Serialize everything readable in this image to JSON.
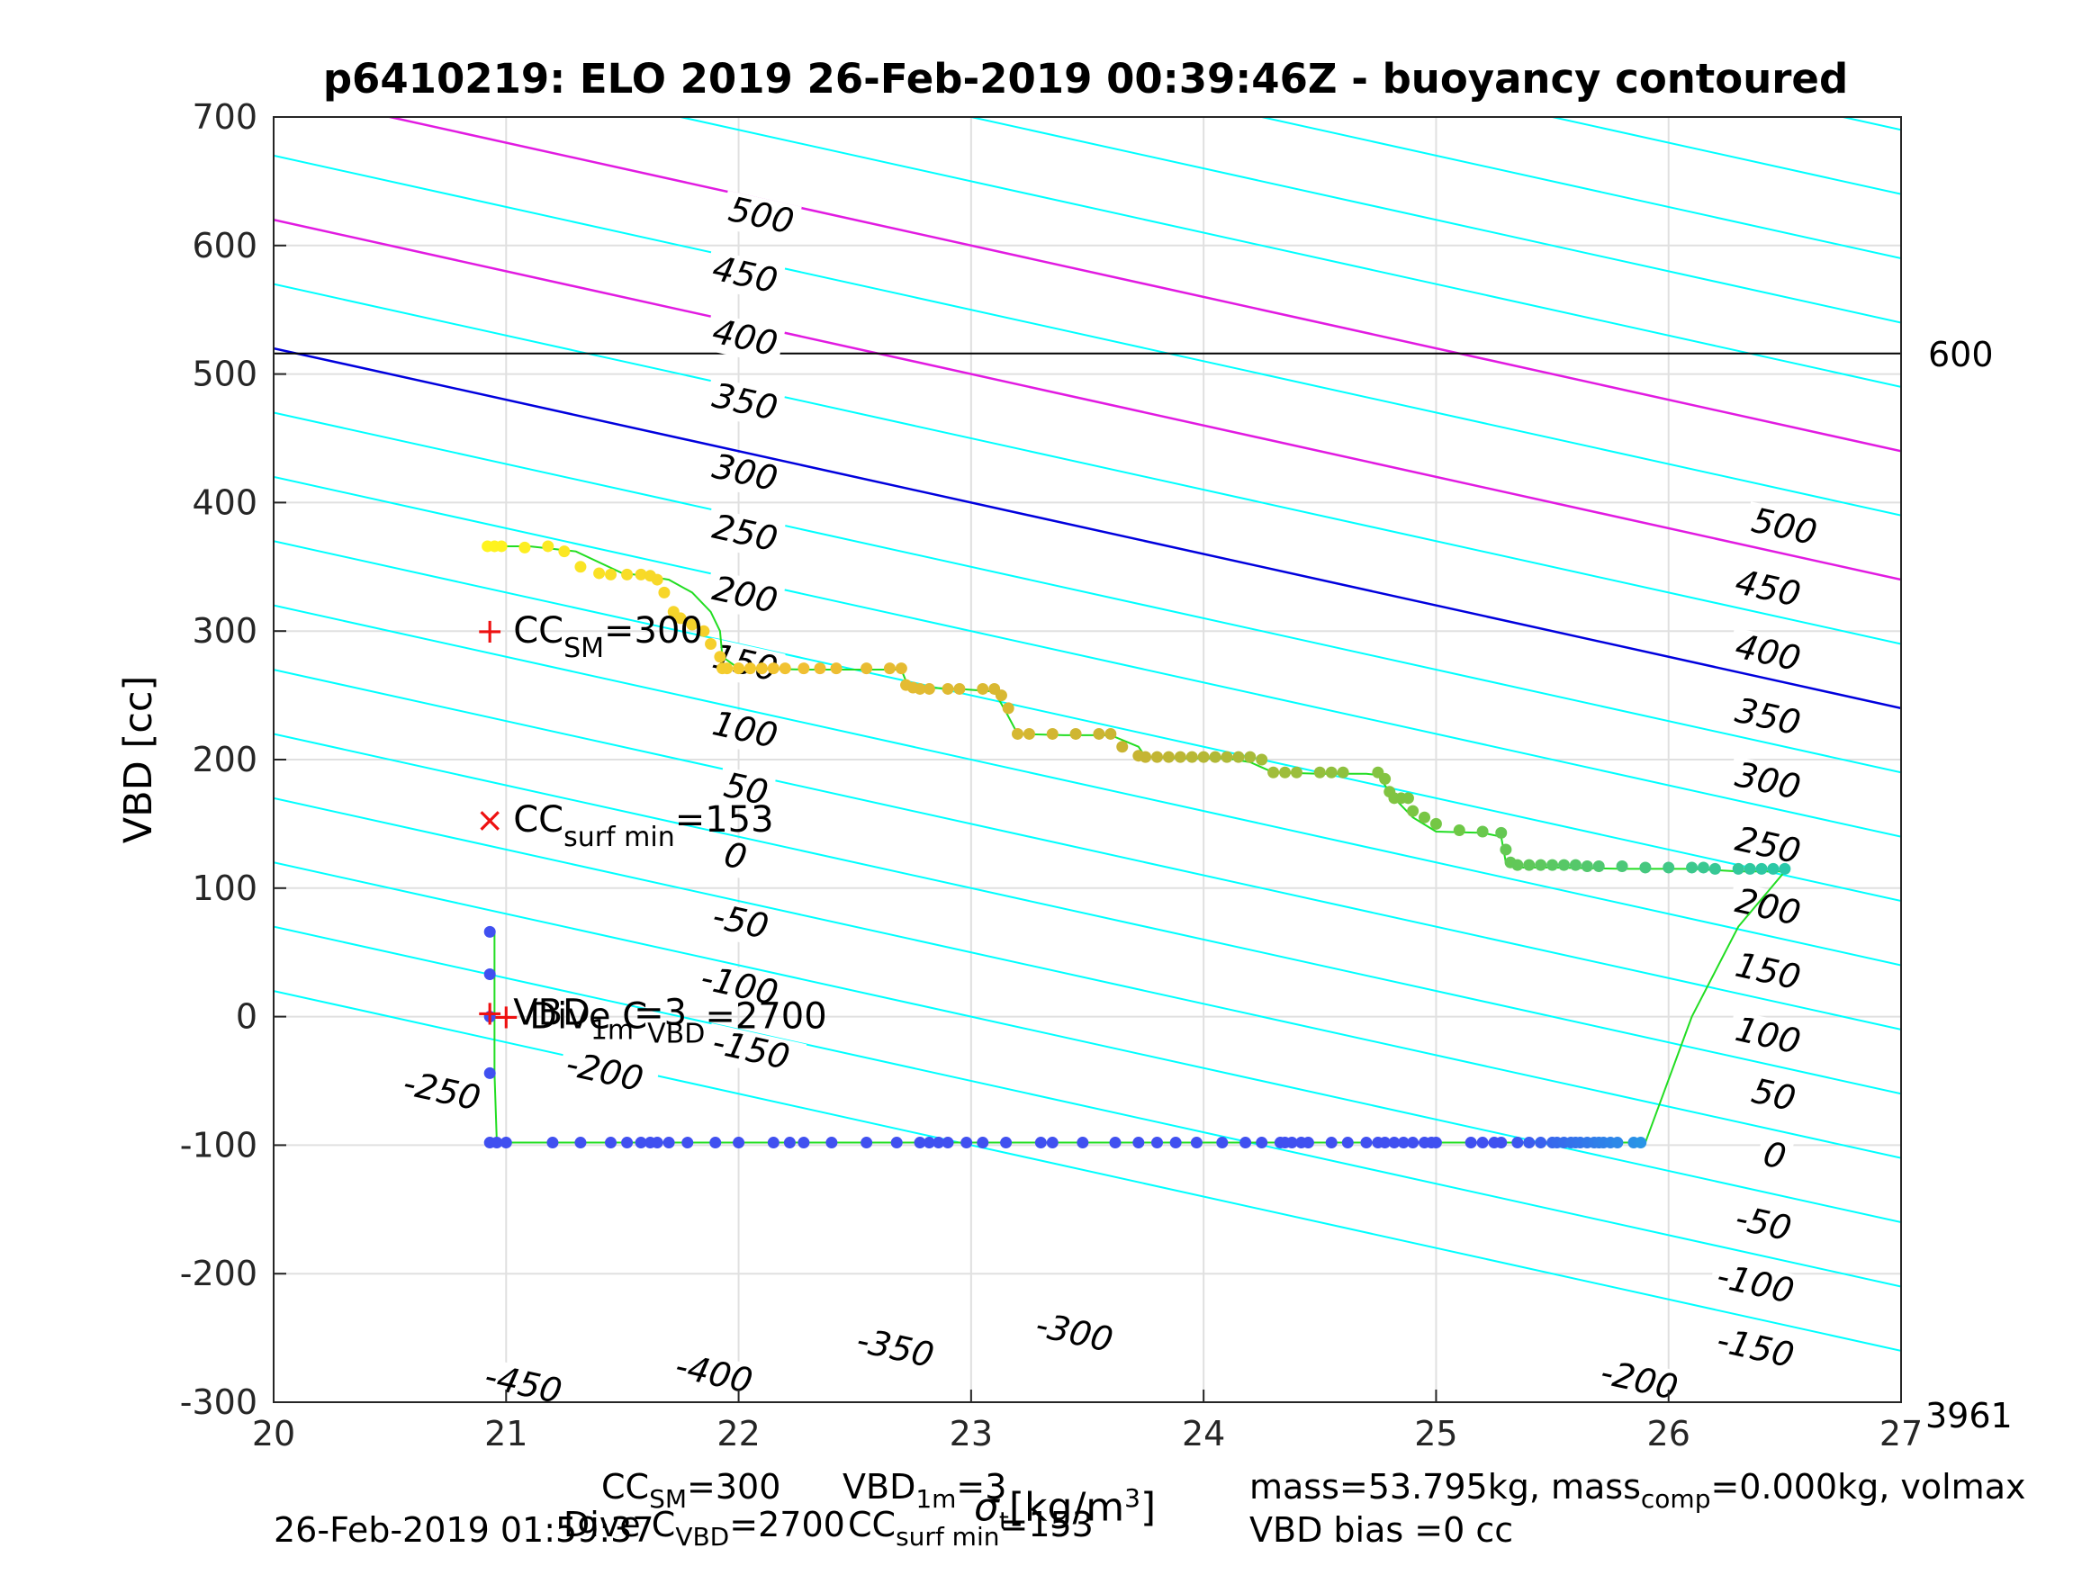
{
  "chart_data": {
    "type": "scatter",
    "title": "p6410219: ELO 2019 26-Feb-2019 00:39:46Z - buoyancy contoured",
    "xlabel": "",
    "ylabel": "VBD [cc]",
    "xlim": [
      20,
      27
    ],
    "ylim": [
      -300,
      700
    ],
    "xticks": [
      "20",
      "21",
      "22",
      "23",
      "24",
      "25",
      "26",
      "27"
    ],
    "yticks": [
      "-300",
      "-200",
      "-100",
      "0",
      "100",
      "200",
      "300",
      "400",
      "500",
      "600",
      "700"
    ],
    "grid": true,
    "reference_lines": [
      {
        "label": "600",
        "y": 516,
        "color": "#000000"
      },
      {
        "label": "3961",
        "y": -300,
        "color": "#000000"
      }
    ],
    "colors": {
      "contour": "#00ffff",
      "limit_contour": "#e11be1",
      "zero_contour": "#0000dd",
      "track": "#22dd22",
      "marker": "#ee1111",
      "descent_point": "#4050f0",
      "ascent_start": "#20c0b0",
      "ascent_end": "#f5f020"
    },
    "contours": {
      "slope": -40,
      "levels": [
        500,
        450,
        400,
        350,
        300,
        250,
        200,
        150,
        100,
        50,
        0,
        -50,
        -100,
        -150,
        -200,
        -250,
        -300,
        -350,
        -400,
        -450,
        -500
      ],
      "intercepts_at_x20": [
        1020,
        970,
        920,
        870,
        820,
        770,
        720,
        670,
        620,
        570,
        520,
        470,
        420,
        370,
        320,
        270,
        220,
        170,
        120,
        70,
        20
      ],
      "highlighted": [
        {
          "level": 200,
          "color": "#e11be1"
        },
        {
          "level": 100,
          "color": "#e11be1"
        },
        {
          "level": 0,
          "color": "#0000dd"
        }
      ],
      "labels": [
        {
          "text": "500",
          "x": 21.95,
          "y": 620
        },
        {
          "text": "450",
          "x": 21.88,
          "y": 574
        },
        {
          "text": "400",
          "x": 21.88,
          "y": 525
        },
        {
          "text": "350",
          "x": 21.88,
          "y": 475
        },
        {
          "text": "300",
          "x": 21.88,
          "y": 420
        },
        {
          "text": "250",
          "x": 21.88,
          "y": 373
        },
        {
          "text": "200",
          "x": 21.88,
          "y": 325
        },
        {
          "text": "150",
          "x": 21.88,
          "y": 272
        },
        {
          "text": "100",
          "x": 21.88,
          "y": 220
        },
        {
          "text": "50",
          "x": 21.93,
          "y": 172
        },
        {
          "text": "0",
          "x": 21.93,
          "y": 118
        },
        {
          "text": "-50",
          "x": 21.88,
          "y": 70
        },
        {
          "text": "-100",
          "x": 21.83,
          "y": 22
        },
        {
          "text": "-150",
          "x": 21.88,
          "y": -28
        },
        {
          "text": "-200",
          "x": 21.25,
          "y": -45
        },
        {
          "text": "-250",
          "x": 20.55,
          "y": -60
        },
        {
          "text": "-300",
          "x": 23.27,
          "y": -248
        },
        {
          "text": "-350",
          "x": 22.5,
          "y": -260
        },
        {
          "text": "-400",
          "x": 21.72,
          "y": -280
        },
        {
          "text": "-450",
          "x": 20.9,
          "y": -288
        },
        {
          "text": "500",
          "x": 26.35,
          "y": 378
        },
        {
          "text": "450",
          "x": 26.28,
          "y": 330
        },
        {
          "text": "400",
          "x": 26.28,
          "y": 280
        },
        {
          "text": "350",
          "x": 26.28,
          "y": 230
        },
        {
          "text": "300",
          "x": 26.28,
          "y": 180
        },
        {
          "text": "250",
          "x": 26.28,
          "y": 130
        },
        {
          "text": "200",
          "x": 26.28,
          "y": 82
        },
        {
          "text": "150",
          "x": 26.28,
          "y": 32
        },
        {
          "text": "100",
          "x": 26.28,
          "y": -18
        },
        {
          "text": "50",
          "x": 26.35,
          "y": -66
        },
        {
          "text": "0",
          "x": 26.4,
          "y": -115
        },
        {
          "text": "-50",
          "x": 26.28,
          "y": -165
        },
        {
          "text": "-100",
          "x": 26.2,
          "y": -210
        },
        {
          "text": "-150",
          "x": 26.2,
          "y": -260
        },
        {
          "text": "-200",
          "x": 25.7,
          "y": -285
        }
      ]
    },
    "track": {
      "x": [
        20.95,
        20.95,
        20.95,
        20.95,
        20.96,
        21.0,
        21.5,
        22.0,
        22.5,
        23.0,
        23.5,
        24.0,
        24.5,
        25.0,
        25.5,
        25.9,
        25.9,
        26.1,
        26.3,
        26.5,
        26.5,
        26.3,
        26.1,
        25.8,
        25.5,
        25.35,
        25.3,
        25.28,
        25.2,
        25.0,
        24.9,
        24.82,
        24.78,
        24.75,
        24.7,
        24.5,
        24.3,
        24.2,
        24.1,
        23.9,
        23.75,
        23.72,
        23.6,
        23.4,
        23.2,
        23.15,
        23.1,
        22.95,
        22.8,
        22.72,
        22.7,
        22.5,
        22.3,
        22.0,
        21.93,
        21.92,
        21.88,
        21.8,
        21.7,
        21.6,
        21.5,
        21.3,
        21.1,
        20.95
      ],
      "y": [
        66,
        33,
        0,
        -44,
        -98,
        -98,
        -98,
        -98,
        -98,
        -98,
        -98,
        -98,
        -98,
        -98,
        -98,
        -98,
        -98,
        0,
        70,
        113,
        113,
        113,
        115,
        115,
        116,
        116,
        120,
        140,
        143,
        144,
        155,
        170,
        180,
        188,
        189,
        189,
        190,
        198,
        201,
        201,
        202,
        210,
        219,
        219,
        220,
        237,
        253,
        255,
        256,
        261,
        270,
        270,
        270,
        271,
        280,
        300,
        315,
        330,
        340,
        343,
        345,
        362,
        366,
        366
      ]
    },
    "descent_points": {
      "x": [
        20.93,
        20.93,
        20.93,
        20.93,
        20.93,
        20.96,
        21.0,
        21.2,
        21.32,
        21.45,
        21.52,
        21.58,
        21.62,
        21.65,
        21.7,
        21.78,
        21.9,
        22.0,
        22.15,
        22.22,
        22.28,
        22.4,
        22.55,
        22.68,
        22.78,
        22.82,
        22.86,
        22.9,
        22.98,
        23.05,
        23.15,
        23.3,
        23.35,
        23.48,
        23.62,
        23.72,
        23.8,
        23.88,
        23.97,
        24.08,
        24.18,
        24.25,
        24.33,
        24.35,
        24.38,
        24.42,
        24.45,
        24.55,
        24.62,
        24.7,
        24.75,
        24.78,
        24.82,
        24.86,
        24.9,
        24.95,
        24.98,
        25.0,
        25.15,
        25.2,
        25.25,
        25.28,
        25.35,
        25.4,
        25.45,
        25.5,
        25.52,
        25.55,
        25.58,
        25.6,
        25.62,
        25.65,
        25.68,
        25.7,
        25.72,
        25.75,
        25.78,
        25.85,
        25.88
      ],
      "y": [
        66,
        33,
        0,
        -44,
        -98,
        -98,
        -98,
        -98,
        -98,
        -98,
        -98,
        -98,
        -98,
        -98,
        -98,
        -98,
        -98,
        -98,
        -98,
        -98,
        -98,
        -98,
        -98,
        -98,
        -98,
        -98,
        -98,
        -98,
        -98,
        -98,
        -98,
        -98,
        -98,
        -98,
        -98,
        -98,
        -98,
        -98,
        -98,
        -98,
        -98,
        -98,
        -98,
        -98,
        -98,
        -98,
        -98,
        -98,
        -98,
        -98,
        -98,
        -98,
        -98,
        -98,
        -98,
        -98,
        -98,
        -98,
        -98,
        -98,
        -98,
        -98,
        -98,
        -98,
        -98,
        -98,
        -98,
        -98,
        -98,
        -98,
        -98,
        -98,
        -98,
        -98,
        -98,
        -98,
        -98,
        -98,
        -98
      ]
    },
    "ascent_points": {
      "x": [
        20.92,
        20.95,
        20.98,
        21.08,
        21.18,
        21.25,
        21.32,
        21.4,
        21.45,
        21.52,
        21.58,
        21.62,
        21.65,
        21.68,
        21.72,
        21.75,
        21.8,
        21.85,
        21.88,
        21.92,
        21.93,
        21.95,
        22.0,
        22.05,
        22.1,
        22.15,
        22.2,
        22.28,
        22.35,
        22.42,
        22.55,
        22.65,
        22.7,
        22.72,
        22.75,
        22.78,
        22.82,
        22.9,
        22.95,
        23.05,
        23.1,
        23.13,
        23.16,
        23.2,
        23.25,
        23.35,
        23.45,
        23.55,
        23.6,
        23.65,
        23.72,
        23.75,
        23.8,
        23.85,
        23.9,
        23.95,
        24.0,
        24.05,
        24.1,
        24.15,
        24.2,
        24.25,
        24.3,
        24.35,
        24.4,
        24.5,
        24.55,
        24.6,
        24.75,
        24.78,
        24.8,
        24.82,
        24.85,
        24.88,
        24.9,
        24.95,
        25.0,
        25.1,
        25.2,
        25.28,
        25.3,
        25.32,
        25.35,
        25.4,
        25.45,
        25.5,
        25.55,
        25.6,
        25.65,
        25.7,
        25.8,
        25.9,
        26.0,
        26.1,
        26.15,
        26.2,
        26.3,
        26.35,
        26.4,
        26.45,
        26.5
      ],
      "y": [
        366,
        366,
        366,
        365,
        366,
        362,
        350,
        345,
        344,
        344,
        344,
        343,
        340,
        330,
        315,
        310,
        305,
        300,
        290,
        280,
        271,
        271,
        271,
        271,
        271,
        271,
        271,
        271,
        271,
        271,
        271,
        271,
        271,
        258,
        256,
        255,
        255,
        255,
        255,
        255,
        255,
        250,
        240,
        220,
        220,
        220,
        220,
        220,
        220,
        210,
        203,
        202,
        202,
        202,
        202,
        202,
        202,
        202,
        202,
        202,
        202,
        200,
        190,
        190,
        190,
        190,
        190,
        190,
        190,
        185,
        175,
        170,
        170,
        170,
        160,
        155,
        150,
        145,
        144,
        143,
        130,
        120,
        118,
        118,
        118,
        118,
        118,
        118,
        117,
        117,
        117,
        116,
        116,
        116,
        116,
        115,
        115,
        115,
        115,
        115,
        115
      ]
    },
    "markers": [
      {
        "symbol": "+",
        "x": 20.93,
        "y": 300,
        "label": "CC",
        "sub": "SM",
        "value": "=300"
      },
      {
        "symbol": "×",
        "x": 20.93,
        "y": 153,
        "label": "CC",
        "sub": "surf min",
        "value": "=153"
      },
      {
        "symbol": "+",
        "x": 20.93,
        "y": 3,
        "label": "VBD",
        "sub": "1m",
        "value": "=3"
      },
      {
        "symbol": "+",
        "x": 21.0,
        "y": 0,
        "label": "Dive C",
        "sub": "VBD",
        "value": "=2700"
      }
    ],
    "footer": {
      "timestamp": "26-Feb-2019 01:59:37",
      "cc_sm": "CC",
      "cc_sm_sub": "SM",
      "cc_sm_val": "=300",
      "vbd_1m": "VBD",
      "vbd_1m_sub": "1m",
      "vbd_1m_val": "=3",
      "dive_c": "Dive C",
      "dive_c_sub": "VBD",
      "dive_c_val": "=2700",
      "cc_surf": "CC",
      "cc_surf_sub": "surf min",
      "cc_surf_val": "=153",
      "xunit_sigma": "σ",
      "xunit_sigma_sub": "t",
      "xunit": "[kg/m",
      "xunit_sup": "3",
      "xunit_end": "]",
      "mass_line": "mass=53.795kg, mass",
      "mass_comp_sub": "comp",
      "mass_line_end": "=0.000kg, volmax",
      "vbd_bias": "VBD bias =0 cc"
    }
  }
}
